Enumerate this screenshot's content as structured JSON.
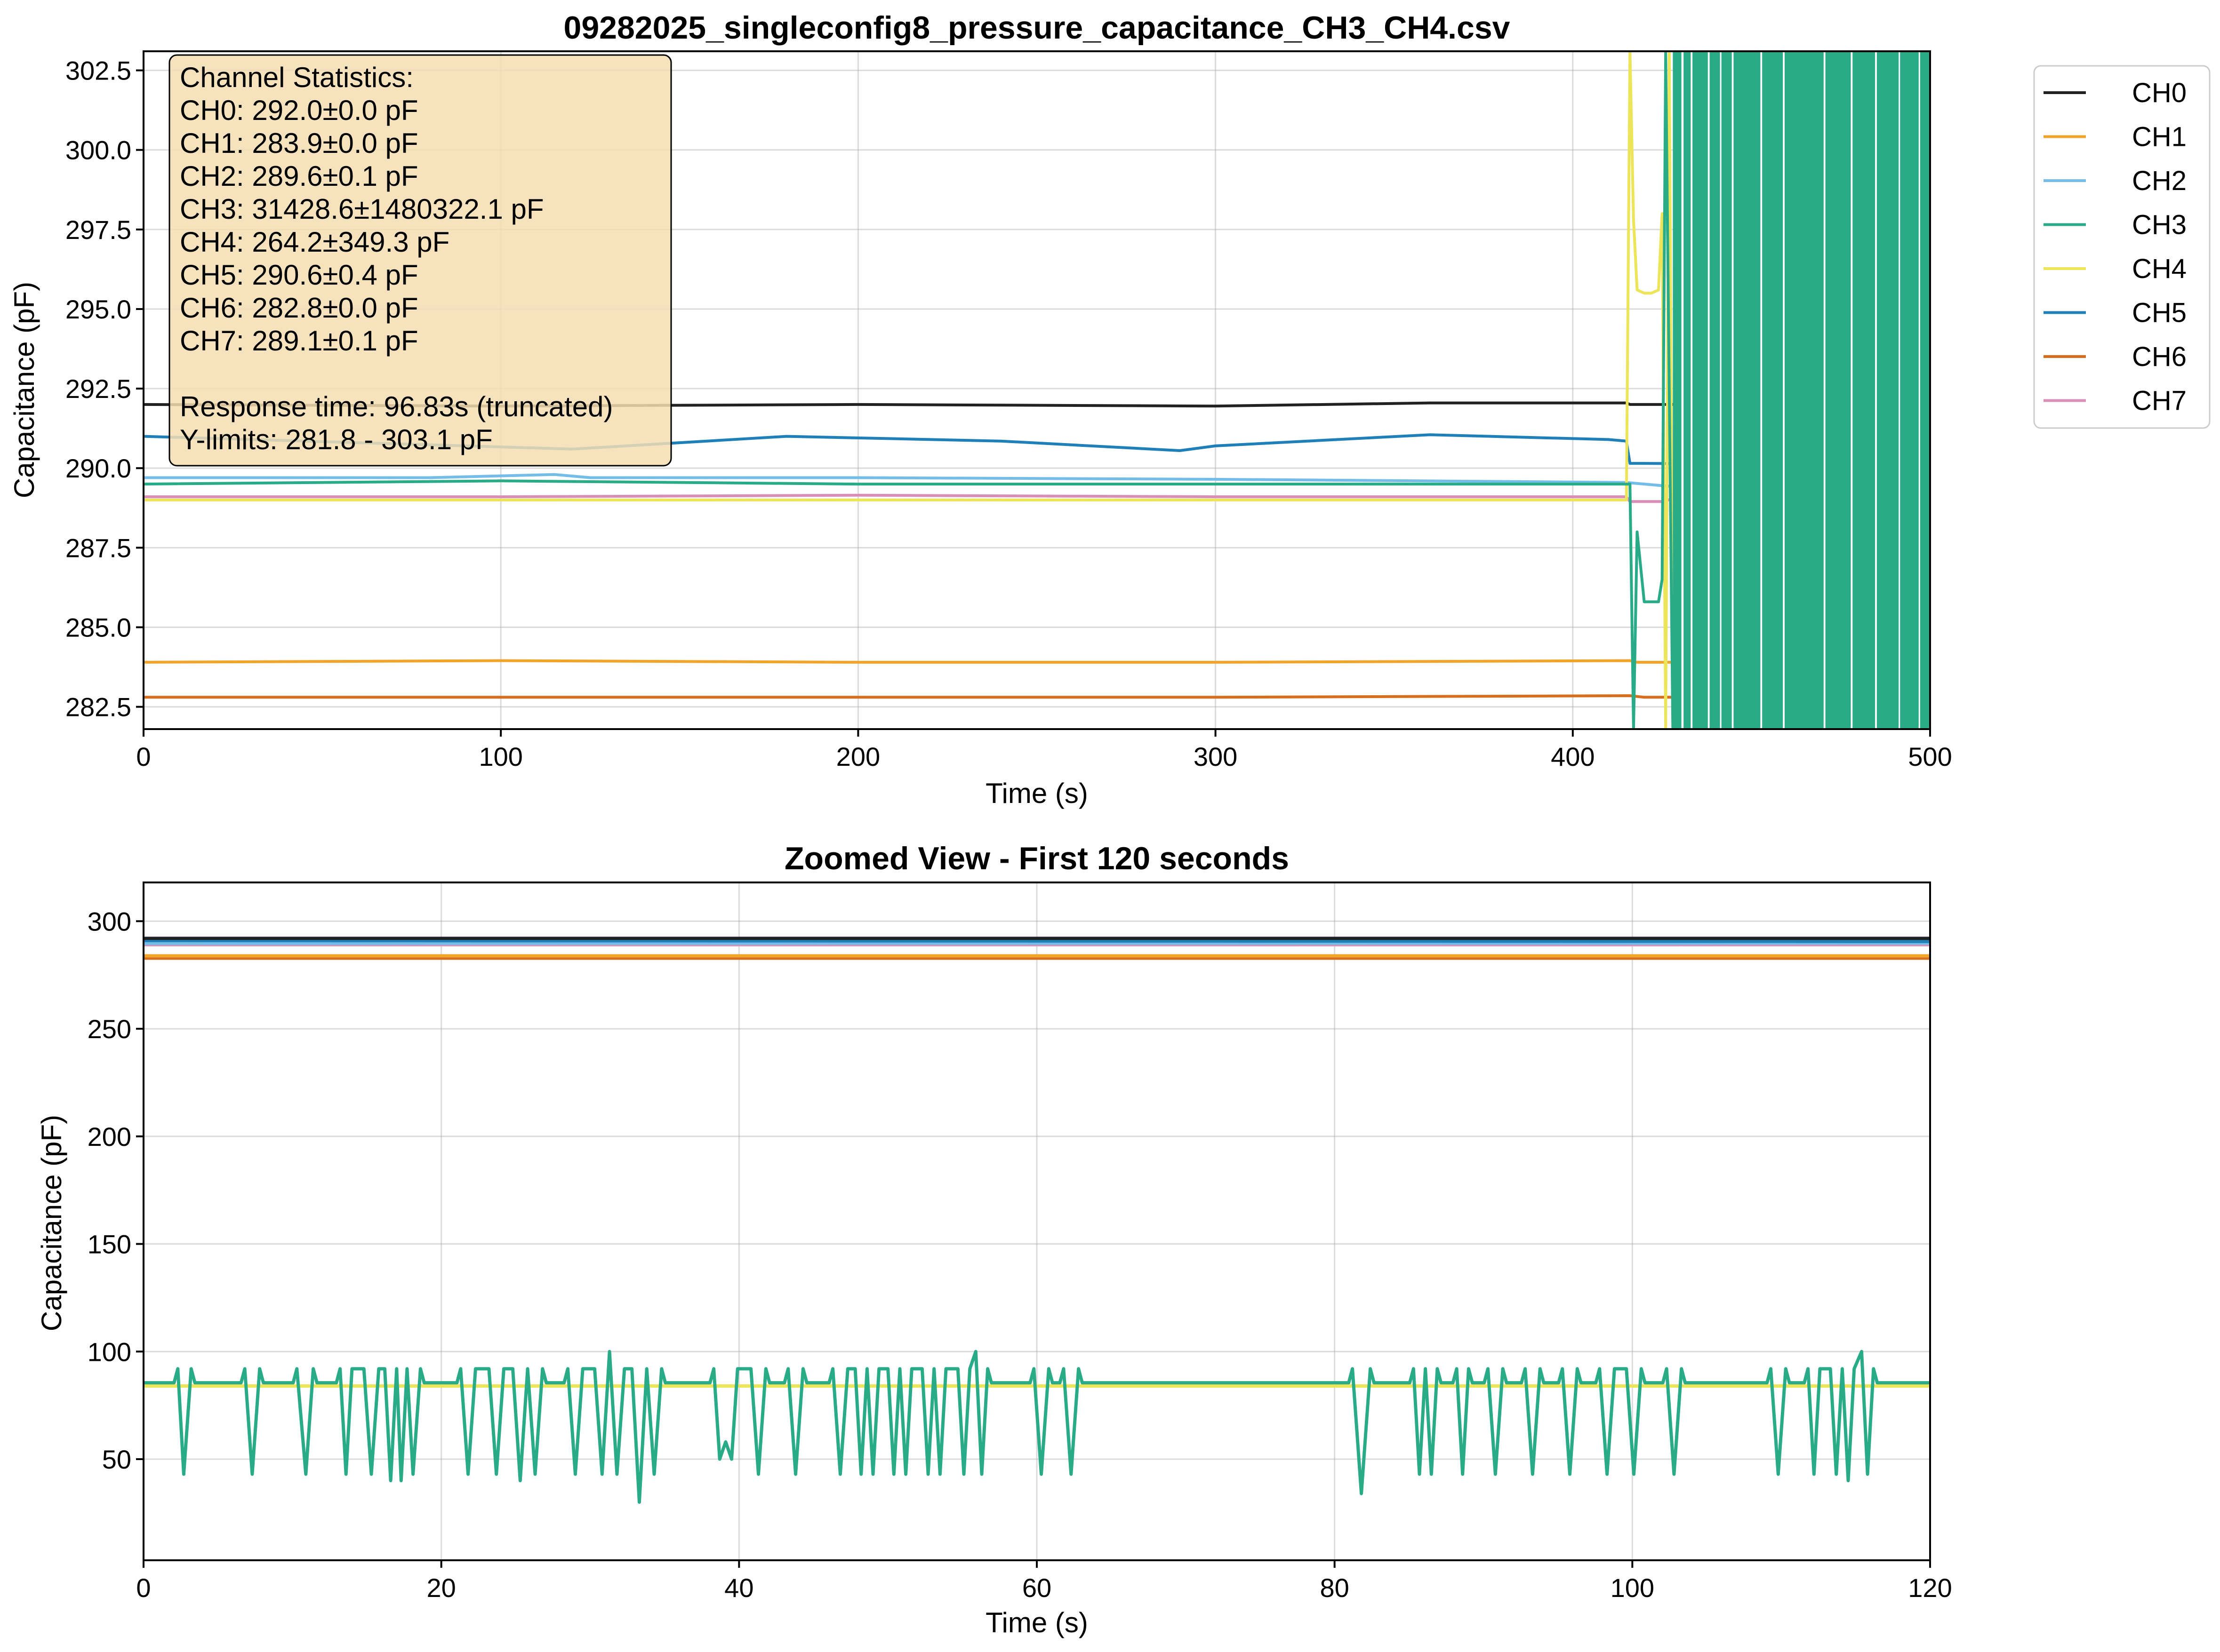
{
  "colors": {
    "CH0": "#222222",
    "CH1": "#f0a52a",
    "CH2": "#74bde8",
    "CH3": "#2aab87",
    "CH4": "#ece55a",
    "CH5": "#1f7fb8",
    "CH6": "#d66e1e",
    "CH7": "#d98eb8"
  },
  "chart_data": [
    {
      "type": "line",
      "title": "09282025_singleconfig8_pressure_capacitance_CH3_CH4.csv",
      "xlabel": "Time (s)",
      "ylabel": "Capacitance (pF)",
      "xlim": [
        0,
        500
      ],
      "ylim": [
        281.8,
        303.1
      ],
      "xticks": [
        "0",
        "100",
        "200",
        "300",
        "400",
        "500"
      ],
      "yticks": [
        "282.5",
        "285.0",
        "287.5",
        "290.0",
        "292.5",
        "295.0",
        "297.5",
        "300.0",
        "302.5"
      ],
      "grid": true,
      "legend": {
        "placement": "outside-right",
        "entries": [
          "CH0",
          "CH1",
          "CH2",
          "CH3",
          "CH4",
          "CH5",
          "CH6",
          "CH7"
        ]
      },
      "annotation": {
        "placement": "top-left",
        "lines": [
          "Channel Statistics:",
          "CH0: 292.0±0.0 pF",
          "CH1: 283.9±0.0 pF",
          "CH2: 289.6±0.1 pF",
          "CH3: 31428.6±1480322.1 pF",
          "CH4: 264.2±349.3 pF",
          "CH5: 290.6±0.4 pF",
          "CH6: 282.8±0.0 pF",
          "CH7: 289.1±0.1 pF",
          "",
          "Response time: 96.83s (truncated)",
          "Y-limits: 281.8 - 303.1 pF"
        ]
      },
      "series": [
        {
          "name": "CH0",
          "x": [
            0,
            100,
            200,
            300,
            360,
            415,
            416,
            500
          ],
          "values": [
            292.0,
            291.95,
            292.0,
            291.95,
            292.05,
            292.05,
            292.0,
            292.0
          ]
        },
        {
          "name": "CH1",
          "x": [
            0,
            100,
            200,
            300,
            416,
            418,
            500
          ],
          "values": [
            283.9,
            283.95,
            283.9,
            283.9,
            283.95,
            283.9,
            283.9
          ]
        },
        {
          "name": "CH2",
          "x": [
            0,
            80,
            115,
            125,
            200,
            300,
            415,
            430,
            500
          ],
          "values": [
            289.7,
            289.7,
            289.8,
            289.7,
            289.7,
            289.65,
            289.55,
            289.4,
            289.35
          ]
        },
        {
          "name": "CH3",
          "x": [
            0,
            100,
            200,
            300,
            400,
            416,
            417,
            418,
            420,
            422,
            424,
            425,
            426,
            428,
            430,
            440,
            460,
            480,
            500
          ],
          "values": [
            289.5,
            289.6,
            289.5,
            289.5,
            289.5,
            289.5,
            281.8,
            288.0,
            285.8,
            285.8,
            285.8,
            286.5,
            303.1,
            281.8,
            303.1,
            281.8,
            303.1,
            281.8,
            303.1
          ]
        },
        {
          "name": "CH4",
          "x": [
            0,
            200,
            415,
            416,
            417,
            418,
            420,
            422,
            424,
            425,
            426,
            427,
            428,
            430,
            500
          ],
          "values": [
            289.0,
            289.0,
            289.0,
            303.1,
            297.8,
            295.6,
            295.5,
            295.5,
            295.6,
            298.0,
            281.8,
            303.1,
            281.8,
            289.5,
            289.5
          ]
        },
        {
          "name": "CH5",
          "x": [
            0,
            60,
            120,
            180,
            240,
            290,
            300,
            360,
            410,
            415,
            416,
            420,
            500
          ],
          "values": [
            291.0,
            290.8,
            290.6,
            291.0,
            290.85,
            290.55,
            290.7,
            291.05,
            290.9,
            290.85,
            290.15,
            290.15,
            290.1
          ]
        },
        {
          "name": "CH6",
          "x": [
            0,
            100,
            200,
            300,
            416,
            420,
            500
          ],
          "values": [
            282.8,
            282.8,
            282.8,
            282.8,
            282.85,
            282.8,
            282.8
          ]
        },
        {
          "name": "CH7",
          "x": [
            0,
            100,
            200,
            300,
            415,
            416,
            425,
            430,
            500
          ],
          "values": [
            289.1,
            289.1,
            289.15,
            289.1,
            289.1,
            288.95,
            288.95,
            289.1,
            289.1
          ]
        }
      ]
    },
    {
      "type": "line",
      "title": "Zoomed View - First 120 seconds",
      "xlabel": "Time (s)",
      "ylabel": "Capacitance (pF)",
      "xlim": [
        0,
        120
      ],
      "ylim": [
        3,
        318
      ],
      "xticks": [
        "0",
        "20",
        "40",
        "60",
        "80",
        "100",
        "120"
      ],
      "yticks": [
        "50",
        "100",
        "150",
        "200",
        "250",
        "300"
      ],
      "grid": true,
      "series": [
        {
          "name": "CH0",
          "x": [
            0,
            120
          ],
          "values": [
            292.0,
            292.0
          ]
        },
        {
          "name": "CH1",
          "x": [
            0,
            120
          ],
          "values": [
            283.9,
            283.9
          ]
        },
        {
          "name": "CH2",
          "x": [
            0,
            120
          ],
          "values": [
            289.7,
            289.8
          ]
        },
        {
          "name": "CH4",
          "x": [
            0,
            120
          ],
          "values": [
            84.0,
            84.0
          ]
        },
        {
          "name": "CH5",
          "x": [
            0,
            120
          ],
          "values": [
            291.0,
            290.6
          ]
        },
        {
          "name": "CH6",
          "x": [
            0,
            120
          ],
          "values": [
            282.8,
            282.8
          ]
        },
        {
          "name": "CH7",
          "x": [
            0,
            120
          ],
          "values": [
            289.1,
            289.1
          ]
        },
        {
          "name": "CH3",
          "baseline": 85.5,
          "x_end": 120,
          "spikes": [
            [
              2.3,
              92
            ],
            [
              2.7,
              43
            ],
            [
              3.2,
              92
            ],
            [
              6.8,
              92
            ],
            [
              7.3,
              43
            ],
            [
              7.8,
              92
            ],
            [
              10.3,
              92
            ],
            [
              10.9,
              43
            ],
            [
              11.4,
              92
            ],
            [
              13.2,
              92
            ],
            [
              13.6,
              43
            ],
            [
              14.0,
              92
            ],
            [
              14.8,
              92
            ],
            [
              15.3,
              43
            ],
            [
              15.8,
              92
            ],
            [
              16.2,
              92
            ],
            [
              16.6,
              40
            ],
            [
              17.0,
              92
            ],
            [
              17.3,
              40
            ],
            [
              17.7,
              92
            ],
            [
              18.1,
              43
            ],
            [
              18.6,
              92
            ],
            [
              21.3,
              92
            ],
            [
              21.8,
              43
            ],
            [
              22.3,
              92
            ],
            [
              23.2,
              92
            ],
            [
              23.7,
              43
            ],
            [
              24.2,
              92
            ],
            [
              24.8,
              92
            ],
            [
              25.3,
              40
            ],
            [
              25.8,
              92
            ],
            [
              26.3,
              43
            ],
            [
              26.8,
              92
            ],
            [
              28.5,
              92
            ],
            [
              29.0,
              43
            ],
            [
              29.5,
              92
            ],
            [
              30.3,
              92
            ],
            [
              30.8,
              43
            ],
            [
              31.3,
              100
            ],
            [
              31.8,
              43
            ],
            [
              32.3,
              92
            ],
            [
              32.8,
              92
            ],
            [
              33.3,
              30
            ],
            [
              33.8,
              92
            ],
            [
              34.3,
              43
            ],
            [
              34.8,
              92
            ],
            [
              38.3,
              92
            ],
            [
              38.7,
              50
            ],
            [
              39.1,
              58
            ],
            [
              39.5,
              50
            ],
            [
              39.9,
              92
            ],
            [
              40.8,
              92
            ],
            [
              41.3,
              43
            ],
            [
              41.8,
              92
            ],
            [
              43.3,
              92
            ],
            [
              43.8,
              43
            ],
            [
              44.3,
              92
            ],
            [
              46.3,
              92
            ],
            [
              46.8,
              43
            ],
            [
              47.3,
              92
            ],
            [
              47.8,
              92
            ],
            [
              48.2,
              43
            ],
            [
              48.6,
              92
            ],
            [
              49.0,
              43
            ],
            [
              49.4,
              92
            ],
            [
              50.0,
              92
            ],
            [
              50.4,
              43
            ],
            [
              50.8,
              92
            ],
            [
              51.2,
              43
            ],
            [
              51.6,
              92
            ],
            [
              52.3,
              92
            ],
            [
              52.7,
              43
            ],
            [
              53.1,
              92
            ],
            [
              53.5,
              43
            ],
            [
              53.9,
              92
            ],
            [
              54.7,
              92
            ],
            [
              55.1,
              43
            ],
            [
              55.5,
              92
            ],
            [
              55.9,
              100
            ],
            [
              56.3,
              43
            ],
            [
              56.7,
              92
            ],
            [
              59.8,
              92
            ],
            [
              60.3,
              43
            ],
            [
              60.8,
              92
            ],
            [
              61.8,
              92
            ],
            [
              62.3,
              43
            ],
            [
              62.8,
              92
            ],
            [
              81.2,
              92
            ],
            [
              81.8,
              34
            ],
            [
              82.4,
              92
            ],
            [
              85.3,
              92
            ],
            [
              85.7,
              43
            ],
            [
              86.1,
              92
            ],
            [
              86.5,
              43
            ],
            [
              86.9,
              92
            ],
            [
              88.2,
              92
            ],
            [
              88.6,
              43
            ],
            [
              89.0,
              92
            ],
            [
              90.3,
              92
            ],
            [
              90.8,
              43
            ],
            [
              91.3,
              92
            ],
            [
              92.8,
              92
            ],
            [
              93.3,
              43
            ],
            [
              93.8,
              92
            ],
            [
              95.3,
              92
            ],
            [
              95.8,
              43
            ],
            [
              96.3,
              92
            ],
            [
              97.8,
              92
            ],
            [
              98.3,
              43
            ],
            [
              98.8,
              92
            ],
            [
              99.6,
              92
            ],
            [
              100.1,
              43
            ],
            [
              100.6,
              92
            ],
            [
              102.3,
              92
            ],
            [
              102.8,
              43
            ],
            [
              103.3,
              92
            ],
            [
              109.3,
              92
            ],
            [
              109.8,
              43
            ],
            [
              110.3,
              92
            ],
            [
              111.8,
              92
            ],
            [
              112.2,
              43
            ],
            [
              112.6,
              92
            ],
            [
              113.3,
              92
            ],
            [
              113.7,
              43
            ],
            [
              114.1,
              92
            ],
            [
              114.5,
              40
            ],
            [
              114.9,
              92
            ],
            [
              115.4,
              100
            ],
            [
              115.8,
              43
            ],
            [
              116.2,
              92
            ]
          ]
        }
      ]
    }
  ]
}
